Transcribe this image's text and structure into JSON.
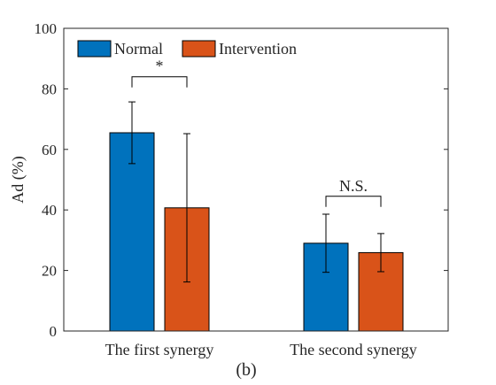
{
  "chart_data": {
    "type": "bar",
    "categories": [
      "The first synergy",
      "The second synergy"
    ],
    "series": [
      {
        "name": "Normal",
        "color": "#0072BD",
        "values": [
          65.5,
          29.0
        ],
        "errors": [
          10.2,
          9.6
        ]
      },
      {
        "name": "Intervention",
        "color": "#D95319",
        "values": [
          40.7,
          25.9
        ],
        "errors": [
          24.5,
          6.3
        ]
      }
    ],
    "ylabel": "Ad (%)",
    "xlabel": "",
    "ylim": [
      0,
      100
    ],
    "yticks": [
      0,
      20,
      40,
      60,
      80,
      100
    ],
    "grid": false,
    "legend_position": "top-left",
    "annotations": [
      {
        "category_index": 0,
        "label": "*",
        "bracket_level": 84
      },
      {
        "category_index": 1,
        "label": "N.S.",
        "bracket_level": 44.5
      }
    ],
    "caption": "(b)"
  }
}
